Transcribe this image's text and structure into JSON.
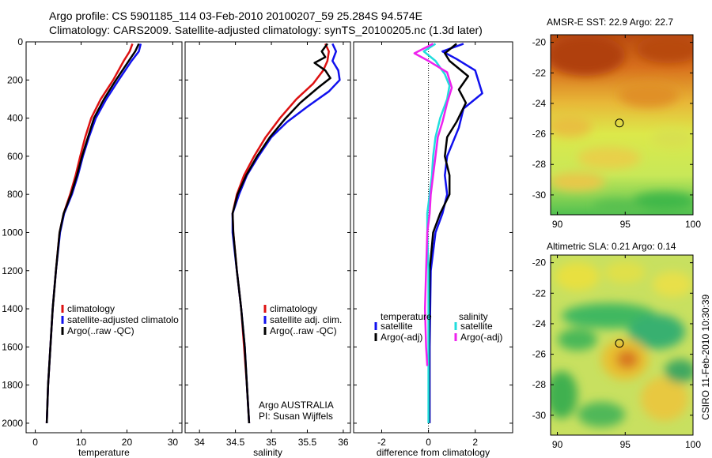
{
  "header": {
    "line1": "Argo profile: CS 5901185_114 03-Feb-2010 20100207_59 25.284S 94.574E",
    "line2": "Climatology: CARS2009. Satellite-adjusted climatology: synTS_20100205.nc (1.3d later)"
  },
  "side_note": "CSIRO 11-Feb-2010 10:30:39",
  "colors": {
    "red": "#dd1111",
    "blue": "#1111ee",
    "black": "#000000",
    "cyan": "#22dddd",
    "magenta": "#ee22ee"
  },
  "chart_data": [
    {
      "id": "temperature",
      "type": "line",
      "xlabel": "temperature",
      "ylabel": "",
      "xlim": [
        -2,
        32
      ],
      "ylim": [
        2050,
        0
      ],
      "xticks": [
        0,
        10,
        20,
        30
      ],
      "yticks": [
        0,
        200,
        400,
        600,
        800,
        1000,
        1200,
        1400,
        1600,
        1800,
        2000
      ],
      "legend": [
        "climatology",
        "satellite-adjusted climatolo",
        "Argo(..raw -QC)"
      ],
      "series": [
        {
          "name": "climatology",
          "color": "red",
          "points": [
            [
              21.2,
              10
            ],
            [
              20.6,
              50
            ],
            [
              19.3,
              100
            ],
            [
              17.0,
              200
            ],
            [
              14.3,
              300
            ],
            [
              12.2,
              400
            ],
            [
              10.9,
              500
            ],
            [
              9.8,
              600
            ],
            [
              8.8,
              700
            ],
            [
              7.6,
              800
            ],
            [
              6.2,
              900
            ],
            [
              5.3,
              1000
            ],
            [
              4.5,
              1200
            ],
            [
              3.8,
              1400
            ],
            [
              3.3,
              1600
            ],
            [
              2.8,
              1800
            ],
            [
              2.5,
              2000
            ]
          ]
        },
        {
          "name": "satellite-adjusted climatolo",
          "color": "blue",
          "points": [
            [
              23.0,
              10
            ],
            [
              22.6,
              50
            ],
            [
              21.0,
              100
            ],
            [
              18.2,
              200
            ],
            [
              15.5,
              300
            ],
            [
              13.2,
              400
            ],
            [
              11.7,
              500
            ],
            [
              10.4,
              600
            ],
            [
              9.3,
              700
            ],
            [
              8.0,
              800
            ],
            [
              6.3,
              900
            ],
            [
              5.4,
              1000
            ],
            [
              4.5,
              1200
            ],
            [
              3.8,
              1400
            ],
            [
              3.3,
              1600
            ],
            [
              2.8,
              1800
            ],
            [
              2.5,
              2000
            ]
          ]
        },
        {
          "name": "Argo(..raw -QC)",
          "color": "black",
          "points": [
            [
              22.6,
              10
            ],
            [
              21.8,
              50
            ],
            [
              20.4,
              100
            ],
            [
              17.6,
              200
            ],
            [
              15.0,
              300
            ],
            [
              12.8,
              400
            ],
            [
              11.5,
              500
            ],
            [
              10.2,
              600
            ],
            [
              9.1,
              700
            ],
            [
              7.8,
              800
            ],
            [
              6.2,
              900
            ],
            [
              5.3,
              1000
            ],
            [
              4.5,
              1200
            ],
            [
              3.8,
              1400
            ],
            [
              3.3,
              1600
            ],
            [
              2.8,
              1800
            ],
            [
              2.5,
              2000
            ]
          ]
        }
      ]
    },
    {
      "id": "salinity",
      "type": "line",
      "xlabel": "salinity",
      "ylabel": "",
      "xlim": [
        33.8,
        36.1
      ],
      "ylim": [
        2050,
        0
      ],
      "xticks": [
        34,
        34.5,
        35,
        35.5,
        36
      ],
      "yticks": [
        0,
        200,
        400,
        600,
        800,
        1000,
        1200,
        1400,
        1600,
        1800,
        2000
      ],
      "legend": [
        "climatology",
        "satellite adj. clim.",
        "Argo(..raw -QC)"
      ],
      "annotation": [
        "Argo AUSTRALIA",
        "PI: Susan Wijffels"
      ],
      "series": [
        {
          "name": "climatology",
          "color": "red",
          "points": [
            [
              35.75,
              10
            ],
            [
              35.8,
              50
            ],
            [
              35.78,
              100
            ],
            [
              35.72,
              150
            ],
            [
              35.58,
              220
            ],
            [
              35.35,
              300
            ],
            [
              35.12,
              400
            ],
            [
              34.92,
              500
            ],
            [
              34.76,
              600
            ],
            [
              34.62,
              700
            ],
            [
              34.52,
              800
            ],
            [
              34.46,
              900
            ],
            [
              34.47,
              1000
            ],
            [
              34.52,
              1200
            ],
            [
              34.58,
              1400
            ],
            [
              34.62,
              1600
            ],
            [
              34.66,
              1800
            ],
            [
              34.69,
              2000
            ]
          ]
        },
        {
          "name": "satellite adj. clim.",
          "color": "blue",
          "points": [
            [
              35.85,
              10
            ],
            [
              35.9,
              50
            ],
            [
              35.85,
              100
            ],
            [
              35.93,
              150
            ],
            [
              35.95,
              200
            ],
            [
              35.8,
              260
            ],
            [
              35.5,
              340
            ],
            [
              35.22,
              420
            ],
            [
              35.0,
              500
            ],
            [
              34.82,
              600
            ],
            [
              34.66,
              700
            ],
            [
              34.55,
              800
            ],
            [
              34.46,
              900
            ],
            [
              34.46,
              1000
            ],
            [
              34.52,
              1200
            ],
            [
              34.58,
              1400
            ],
            [
              34.63,
              1600
            ],
            [
              34.66,
              1800
            ],
            [
              34.69,
              2000
            ]
          ]
        },
        {
          "name": "Argo(..raw -QC)",
          "color": "black",
          "points": [
            [
              35.78,
              10
            ],
            [
              35.7,
              50
            ],
            [
              35.75,
              80
            ],
            [
              35.6,
              110
            ],
            [
              35.75,
              150
            ],
            [
              35.82,
              190
            ],
            [
              35.65,
              240
            ],
            [
              35.4,
              320
            ],
            [
              35.2,
              400
            ],
            [
              34.98,
              500
            ],
            [
              34.8,
              600
            ],
            [
              34.65,
              700
            ],
            [
              34.53,
              800
            ],
            [
              34.46,
              900
            ],
            [
              34.47,
              1000
            ],
            [
              34.52,
              1200
            ],
            [
              34.55,
              1300
            ],
            [
              34.58,
              1400
            ],
            [
              34.63,
              1600
            ],
            [
              34.66,
              1800
            ],
            [
              34.69,
              2000
            ]
          ]
        }
      ]
    },
    {
      "id": "difference",
      "type": "line",
      "xlabel": "difference from climatology",
      "ylabel": "",
      "xlim": [
        -3.2,
        3.6
      ],
      "ylim": [
        2050,
        0
      ],
      "xticks": [
        -2,
        0,
        2
      ],
      "yticks": [
        0,
        200,
        400,
        600,
        800,
        1000,
        1200,
        1400,
        1600,
        1800,
        2000
      ],
      "legend_left_title": "temperature",
      "legend_right_title": "salinity",
      "legend": [
        "satellite",
        "Argo(-adj)",
        "satellite",
        "Argo(-adj)"
      ],
      "series": [
        {
          "name": "satellite",
          "group": "temperature",
          "color": "blue",
          "points": [
            [
              1.5,
              10
            ],
            [
              0.6,
              50
            ],
            [
              1.2,
              90
            ],
            [
              2.0,
              150
            ],
            [
              2.3,
              270
            ],
            [
              1.5,
              350
            ],
            [
              1.3,
              450
            ],
            [
              0.8,
              600
            ],
            [
              0.7,
              700
            ],
            [
              0.8,
              800
            ],
            [
              0.6,
              900
            ],
            [
              0.3,
              1000
            ],
            [
              0.1,
              1200
            ],
            [
              0.05,
              1600
            ],
            [
              0.05,
              2000
            ]
          ]
        },
        {
          "name": "Argo(-adj)",
          "group": "temperature",
          "color": "black",
          "points": [
            [
              1.2,
              10
            ],
            [
              0.7,
              60
            ],
            [
              0.9,
              100
            ],
            [
              1.7,
              180
            ],
            [
              1.3,
              250
            ],
            [
              1.6,
              320
            ],
            [
              1.2,
              420
            ],
            [
              0.8,
              500
            ],
            [
              0.7,
              600
            ],
            [
              0.9,
              700
            ],
            [
              0.9,
              800
            ],
            [
              0.5,
              900
            ],
            [
              0.2,
              1000
            ],
            [
              0.05,
              1200
            ],
            [
              0.02,
              1600
            ],
            [
              0.02,
              2000
            ]
          ]
        },
        {
          "name": "satellite",
          "group": "salinity",
          "color": "cyan",
          "points": [
            [
              0.3,
              10
            ],
            [
              -0.2,
              50
            ],
            [
              0.3,
              100
            ],
            [
              0.7,
              170
            ],
            [
              0.9,
              230
            ],
            [
              0.8,
              300
            ],
            [
              0.5,
              400
            ],
            [
              0.3,
              500
            ],
            [
              0.2,
              600
            ],
            [
              0.15,
              700
            ],
            [
              0.05,
              800
            ],
            [
              -0.05,
              900
            ],
            [
              -0.05,
              1000
            ],
            [
              0.0,
              1200
            ],
            [
              0.0,
              1600
            ],
            [
              0.0,
              2000
            ]
          ]
        },
        {
          "name": "Argo(-adj)",
          "group": "salinity",
          "color": "magenta",
          "points": [
            [
              0.2,
              10
            ],
            [
              -0.6,
              60
            ],
            [
              0.0,
              100
            ],
            [
              0.8,
              160
            ],
            [
              1.0,
              240
            ],
            [
              0.8,
              320
            ],
            [
              0.6,
              420
            ],
            [
              0.4,
              500
            ],
            [
              0.3,
              600
            ],
            [
              0.2,
              700
            ],
            [
              0.1,
              800
            ],
            [
              0.05,
              900
            ],
            [
              -0.05,
              1000
            ],
            [
              -0.1,
              1200
            ],
            [
              -0.15,
              1400
            ],
            [
              -0.1,
              1600
            ],
            [
              -0.05,
              1700
            ]
          ]
        }
      ]
    },
    {
      "id": "sst_map",
      "type": "heatmap",
      "title": "AMSR-E SST: 22.9 Argo: 22.7",
      "xlim": [
        89.5,
        100
      ],
      "ylim": [
        -31.3,
        -19.5
      ],
      "xticks": [
        90,
        95,
        100
      ],
      "yticks": [
        -20,
        -22,
        -24,
        -26,
        -28,
        -30
      ],
      "marker": {
        "lon": 94.574,
        "lat": -25.284
      }
    },
    {
      "id": "sla_map",
      "type": "heatmap",
      "title": "Altimetric SLA: 0.21 Argo: 0.14",
      "xlim": [
        89.5,
        100
      ],
      "ylim": [
        -31.3,
        -19.5
      ],
      "xticks": [
        90,
        95,
        100
      ],
      "yticks": [
        -20,
        -22,
        -24,
        -26,
        -28,
        -30
      ],
      "marker": {
        "lon": 94.574,
        "lat": -25.284
      }
    }
  ]
}
